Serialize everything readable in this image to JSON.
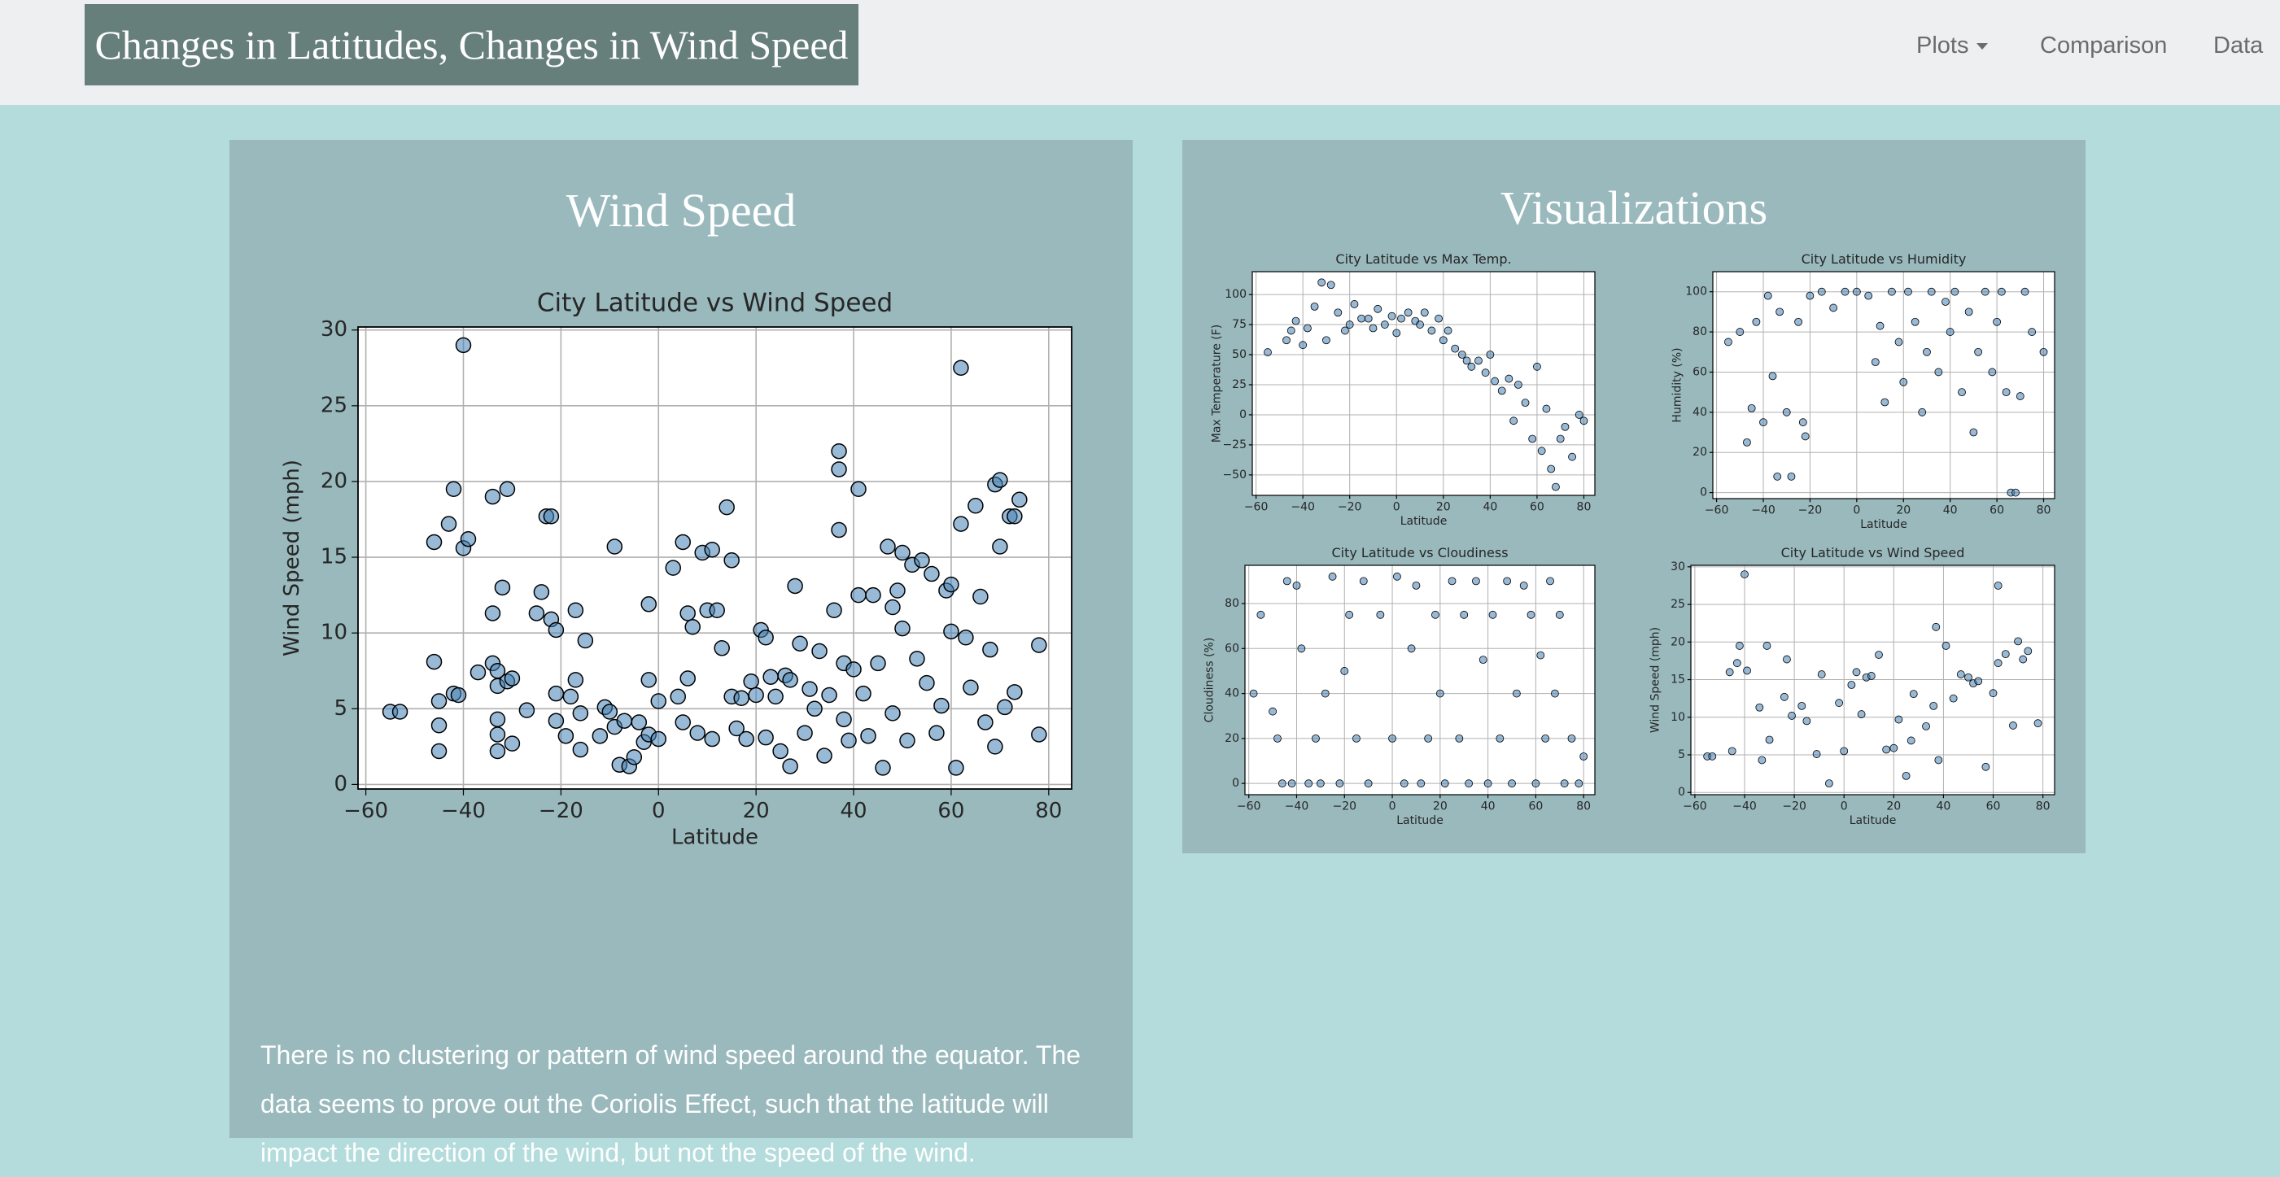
{
  "navbar": {
    "brand": "Changes in Latitudes, Changes in Wind Speed",
    "items": [
      "Plots",
      "Comparison",
      "Data"
    ]
  },
  "wind_panel": {
    "title": "Wind Speed",
    "description": "There is no clustering or pattern of wind speed around the equator. The data seems to prove out the Coriolis Effect, such that the latitude will impact the direction of the wind, but not the speed of the wind."
  },
  "visualizations_panel": {
    "title": "Visualizations"
  },
  "chart_data": [
    {
      "type": "scatter",
      "title": "City Latitude vs Wind Speed",
      "x_label": "Latitude",
      "y_label": "Wind Speed (mph)",
      "color": "#4682b4",
      "grid": true,
      "xlim": [
        -61.6,
        84.7
      ],
      "ylim": [
        -0.3,
        30.2
      ],
      "xticks": [
        {
          "value": -60,
          "label": "−60"
        },
        {
          "value": -40,
          "label": "−40"
        },
        {
          "value": -20,
          "label": "−20"
        },
        0,
        20,
        40,
        60,
        80
      ],
      "yticks": [
        0,
        5,
        10,
        15,
        20,
        25,
        30
      ],
      "x": [
        -55,
        -53,
        -46,
        -46,
        -45,
        -45,
        -45,
        -43,
        -42,
        -42,
        -41,
        -40,
        -40,
        -39,
        -37,
        -34,
        -34,
        -34,
        -33,
        -33,
        -33,
        -33,
        -33,
        -32,
        -31,
        -31,
        -30,
        -30,
        -27,
        -25,
        -24,
        -23,
        -22,
        -22,
        -21,
        -21,
        -21,
        -19,
        -18,
        -17,
        -17,
        -16,
        -16,
        -15,
        -12,
        -11,
        -10,
        -9,
        -9,
        -8,
        -7,
        -6,
        -5,
        -4,
        -3,
        -2,
        -2,
        -2,
        0,
        0,
        3,
        4,
        5,
        5,
        6,
        6,
        7,
        8,
        9,
        10,
        11,
        11,
        12,
        13,
        14,
        15,
        15,
        16,
        17,
        18,
        19,
        20,
        21,
        22,
        22,
        23,
        24,
        25,
        26,
        27,
        27,
        28,
        29,
        30,
        31,
        32,
        33,
        34,
        35,
        36,
        37,
        37,
        37,
        38,
        38,
        39,
        40,
        41,
        41,
        42,
        43,
        44,
        45,
        46,
        47,
        48,
        48,
        49,
        50,
        50,
        51,
        52,
        53,
        54,
        55,
        56,
        57,
        58,
        59,
        60,
        60,
        61,
        62,
        62,
        63,
        64,
        65,
        66,
        67,
        68,
        69,
        69,
        70,
        70,
        71,
        72,
        73,
        74,
        73,
        78,
        78
      ],
      "values": [
        4.8,
        4.8,
        16,
        8.1,
        5.5,
        3.9,
        2.2,
        17.2,
        19.5,
        6,
        5.9,
        29,
        15.6,
        16.2,
        7.4,
        19,
        11.3,
        8,
        7.5,
        6.5,
        4.3,
        3.3,
        2.2,
        13,
        19.5,
        6.8,
        7,
        2.7,
        4.9,
        11.3,
        12.7,
        17.7,
        17.7,
        10.9,
        10.2,
        6,
        4.2,
        3.2,
        5.8,
        11.5,
        6.9,
        4.7,
        2.3,
        9.5,
        3.2,
        5.1,
        4.8,
        15.7,
        3.8,
        1.3,
        4.2,
        1.2,
        1.8,
        4.1,
        2.8,
        11.9,
        6.9,
        3.3,
        5.5,
        3,
        14.3,
        5.8,
        16,
        4.1,
        11.3,
        7,
        10.4,
        3.4,
        15.3,
        11.5,
        15.5,
        3,
        11.5,
        9,
        18.3,
        14.8,
        5.8,
        3.7,
        5.7,
        3,
        6.8,
        5.9,
        10.2,
        9.7,
        3.1,
        7.1,
        5.8,
        2.2,
        7.2,
        1.2,
        6.9,
        13.1,
        9.3,
        3.4,
        6.3,
        5,
        8.8,
        1.9,
        5.9,
        11.5,
        22,
        20.8,
        16.8,
        8,
        4.3,
        2.9,
        7.6,
        19.5,
        12.5,
        6,
        3.2,
        12.5,
        8,
        1.1,
        15.7,
        11.7,
        4.7,
        12.8,
        15.3,
        10.3,
        2.9,
        14.5,
        8.3,
        14.8,
        6.7,
        13.9,
        3.4,
        5.2,
        12.8,
        13.2,
        10.1,
        1.1,
        17.2,
        27.5,
        9.7,
        6.4,
        18.4,
        12.4,
        4.1,
        8.9,
        19.8,
        2.5,
        20.1,
        15.7,
        5.1,
        17.7,
        17.7,
        18.8,
        6.1,
        9.2,
        3.3
      ]
    },
    {
      "type": "scatter",
      "title": "City Latitude vs Max Temp.",
      "x_label": "Latitude",
      "y_label": "Max Temperature (F)",
      "color": "#4682b4",
      "grid": true,
      "xlim": [
        -61.6,
        84.7
      ],
      "ylim": [
        -67,
        119
      ],
      "xticks": [
        {
          "value": -60,
          "label": "−60"
        },
        {
          "value": -40,
          "label": "−40"
        },
        {
          "value": -20,
          "label": "−20"
        },
        0,
        20,
        40,
        60,
        80
      ],
      "yticks": [
        {
          "value": -50,
          "label": "−50"
        },
        {
          "value": -25,
          "label": "−25"
        },
        0,
        25,
        50,
        75,
        100
      ],
      "x": [
        -55,
        -47,
        -45,
        -43,
        -40,
        -38,
        -35,
        -32,
        -30,
        -28,
        -25,
        -22,
        -20,
        -18,
        -15,
        -12,
        -10,
        -8,
        -5,
        -2,
        0,
        2,
        5,
        8,
        10,
        12,
        15,
        18,
        20,
        22,
        25,
        28,
        30,
        32,
        35,
        38,
        40,
        42,
        45,
        48,
        50,
        52,
        55,
        58,
        60,
        62,
        64,
        66,
        68,
        70,
        72,
        75,
        78,
        80
      ],
      "values": [
        52,
        62,
        70,
        78,
        58,
        72,
        90,
        110,
        62,
        108,
        85,
        70,
        75,
        92,
        80,
        80,
        72,
        88,
        75,
        82,
        68,
        80,
        85,
        78,
        75,
        85,
        70,
        80,
        62,
        70,
        55,
        50,
        45,
        40,
        45,
        35,
        50,
        28,
        20,
        30,
        -5,
        25,
        10,
        -20,
        40,
        -30,
        5,
        -45,
        -60,
        -20,
        -10,
        -35,
        0,
        -5
      ]
    },
    {
      "type": "scatter",
      "title": "City Latitude vs Humidity",
      "x_label": "Latitude",
      "y_label": "Humidity (%)",
      "color": "#4682b4",
      "grid": true,
      "xlim": [
        -61.6,
        84.7
      ],
      "ylim": [
        -3,
        110
      ],
      "xticks": [
        {
          "value": -60,
          "label": "−60"
        },
        {
          "value": -40,
          "label": "−40"
        },
        {
          "value": -20,
          "label": "−20"
        },
        0,
        20,
        40,
        60,
        80
      ],
      "yticks": [
        0,
        20,
        40,
        60,
        80,
        100
      ],
      "x": [
        -55,
        -50,
        -47,
        -45,
        -43,
        -40,
        -38,
        -36,
        -34,
        -33,
        -30,
        -28,
        -25,
        -23,
        -22,
        -20,
        -15,
        -10,
        -5,
        0,
        5,
        8,
        10,
        12,
        15,
        18,
        20,
        22,
        25,
        28,
        30,
        32,
        35,
        38,
        40,
        42,
        45,
        48,
        50,
        52,
        55,
        58,
        60,
        62,
        64,
        66,
        68,
        70,
        72,
        75,
        80
      ],
      "values": [
        75,
        80,
        25,
        42,
        85,
        35,
        98,
        58,
        8,
        90,
        40,
        8,
        85,
        35,
        28,
        98,
        100,
        92,
        100,
        100,
        98,
        65,
        83,
        45,
        100,
        75,
        55,
        100,
        85,
        40,
        70,
        100,
        60,
        95,
        80,
        100,
        50,
        90,
        30,
        70,
        100,
        60,
        85,
        100,
        50,
        0,
        0,
        48,
        100,
        80,
        70
      ]
    },
    {
      "type": "scatter",
      "title": "City Latitude vs Cloudiness",
      "x_label": "Latitude",
      "y_label": "Cloudiness (%)",
      "color": "#4682b4",
      "grid": true,
      "xlim": [
        -61.6,
        84.7
      ],
      "ylim": [
        -5,
        97
      ],
      "xticks": [
        {
          "value": -60,
          "label": "−60"
        },
        {
          "value": -40,
          "label": "−40"
        },
        {
          "value": -20,
          "label": "−20"
        },
        0,
        20,
        40,
        60,
        80
      ],
      "yticks": [
        0,
        20,
        40,
        60,
        80
      ],
      "x": [
        -58,
        -55,
        -50,
        -48,
        -46,
        -44,
        -42,
        -40,
        -38,
        -35,
        -32,
        -30,
        -28,
        -25,
        -22,
        -20,
        -18,
        -15,
        -12,
        -10,
        -5,
        0,
        2,
        5,
        8,
        10,
        12,
        15,
        18,
        20,
        22,
        25,
        28,
        30,
        32,
        35,
        38,
        40,
        42,
        45,
        48,
        50,
        52,
        55,
        58,
        60,
        62,
        64,
        66,
        68,
        70,
        72,
        75,
        78,
        80
      ],
      "values": [
        40,
        75,
        32,
        20,
        0,
        90,
        0,
        88,
        60,
        0,
        20,
        0,
        40,
        92,
        0,
        50,
        75,
        20,
        90,
        0,
        75,
        20,
        92,
        0,
        60,
        88,
        0,
        20,
        75,
        40,
        0,
        90,
        20,
        75,
        0,
        90,
        55,
        0,
        75,
        20,
        90,
        0,
        40,
        88,
        75,
        0,
        57,
        20,
        90,
        40,
        75,
        0,
        20,
        0,
        12
      ]
    },
    {
      "type": "scatter",
      "title": "City Latitude vs Wind Speed",
      "x_label": "Latitude",
      "y_label": "Wind Speed (mph)",
      "color": "#4682b4",
      "grid": true,
      "xlim": [
        -61.6,
        84.7
      ],
      "ylim": [
        -0.3,
        30.2
      ],
      "xticks": [
        {
          "value": -60,
          "label": "−60"
        },
        {
          "value": -40,
          "label": "−40"
        },
        {
          "value": -20,
          "label": "−20"
        },
        0,
        20,
        40,
        60,
        80
      ],
      "yticks": [
        0,
        5,
        10,
        15,
        20,
        25,
        30
      ],
      "x": [
        -55,
        -53,
        -46,
        -45,
        -43,
        -42,
        -40,
        -39,
        -34,
        -33,
        -31,
        -30,
        -24,
        -23,
        -21,
        -17,
        -15,
        -11,
        -9,
        -6,
        -2,
        0,
        3,
        5,
        7,
        9,
        11,
        14,
        17,
        20,
        22,
        25,
        27,
        28,
        33,
        36,
        37,
        38,
        41,
        44,
        47,
        50,
        52,
        54,
        57,
        60,
        62,
        62,
        65,
        68,
        70,
        72,
        74,
        78
      ],
      "values": [
        4.8,
        4.8,
        16,
        5.5,
        17.2,
        19.5,
        29,
        16.2,
        11.3,
        4.3,
        19.5,
        7,
        12.7,
        17.7,
        10.2,
        11.5,
        9.5,
        5.1,
        15.7,
        1.2,
        11.9,
        5.5,
        14.3,
        16,
        10.4,
        15.3,
        15.5,
        18.3,
        5.7,
        5.9,
        9.7,
        2.2,
        6.9,
        13.1,
        8.8,
        11.5,
        22,
        4.3,
        19.5,
        12.5,
        15.7,
        15.3,
        14.5,
        14.8,
        3.4,
        13.2,
        17.2,
        27.5,
        18.4,
        8.9,
        20.1,
        17.7,
        18.8,
        9.2
      ]
    }
  ]
}
